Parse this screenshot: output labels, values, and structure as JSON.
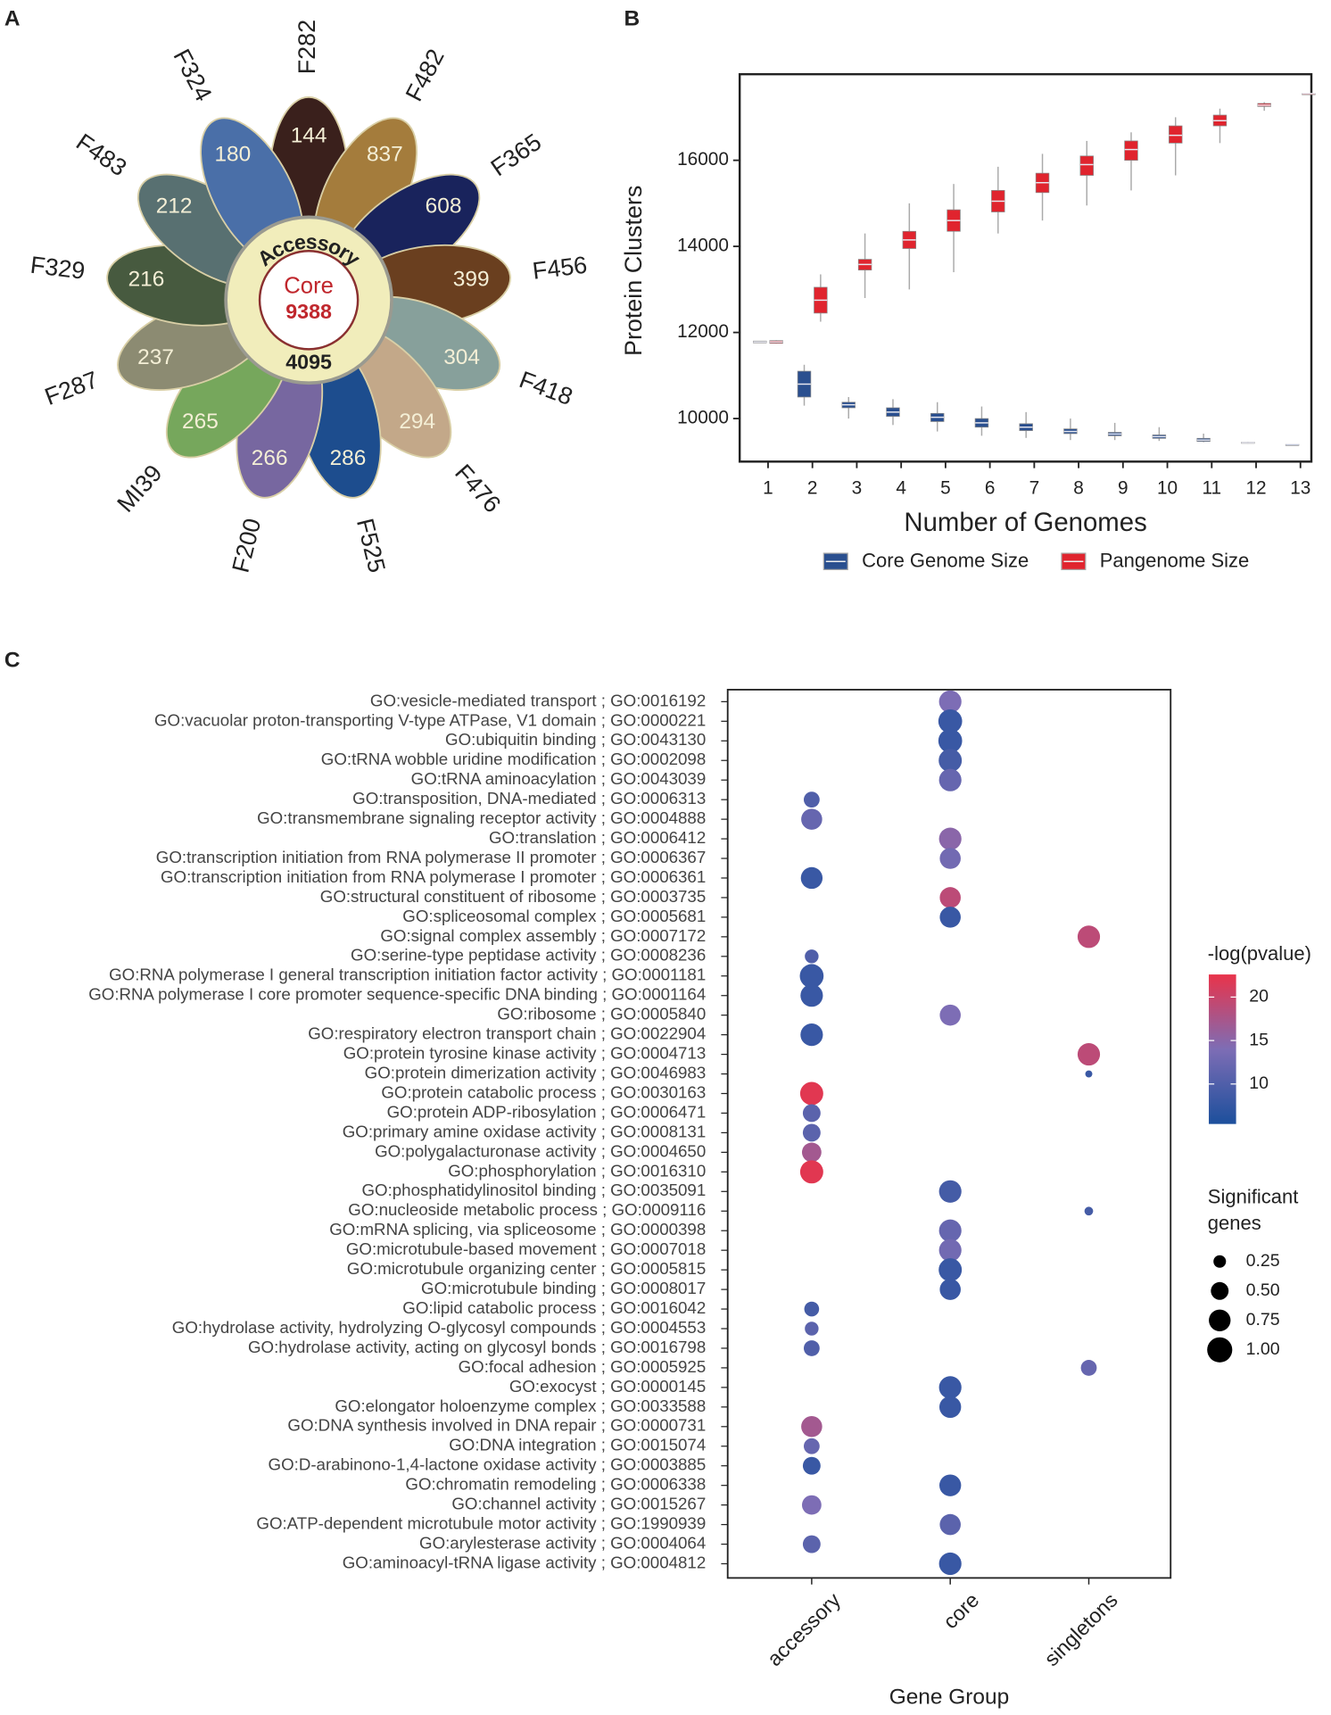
{
  "chart_data": [
    {
      "type": "flower",
      "panel": "A",
      "categories": [
        "F282",
        "F482",
        "F365",
        "F456",
        "F418",
        "F476",
        "F525",
        "F200",
        "MI39",
        "F287",
        "F329",
        "F483",
        "F324"
      ],
      "values": [
        144,
        837,
        608,
        399,
        304,
        294,
        286,
        266,
        265,
        237,
        216,
        212,
        180
      ],
      "colors": [
        "#3a201c",
        "#a47c3c",
        "#19235c",
        "#6a3f1f",
        "#87a09b",
        "#c3a889",
        "#1d4d8e",
        "#7767a0",
        "#76a75c",
        "#8c8b72",
        "#475a3f",
        "#587071",
        "#4a6fa8"
      ],
      "center_label": "Core",
      "center_value": 9388,
      "ring_label": "Accessory",
      "ring_value": 4095
    },
    {
      "type": "box",
      "panel": "B",
      "categories": [
        "1",
        "2",
        "3",
        "4",
        "5",
        "6",
        "7",
        "8",
        "9",
        "10",
        "11",
        "12",
        "13"
      ],
      "xlabel": "Number of Genomes",
      "ylabel": "Protein Clusters",
      "ylim": [
        9000,
        18000
      ],
      "yticks": [
        10000,
        12000,
        14000,
        16000
      ],
      "series": [
        {
          "name": "Core Genome Size",
          "color": "#2a4f8f",
          "whislo": [
            11780,
            10300,
            10000,
            9850,
            9700,
            9600,
            9550,
            9500,
            9500,
            9480,
            9450,
            9420,
            9400
          ],
          "q1": [
            11760,
            10500,
            10250,
            10050,
            9930,
            9800,
            9720,
            9650,
            9600,
            9540,
            9470,
            9430,
            9400
          ],
          "median": [
            11780,
            10800,
            10320,
            10150,
            10030,
            9900,
            9800,
            9700,
            9640,
            9580,
            9500,
            9440,
            9400
          ],
          "q3": [
            11800,
            11100,
            10380,
            10250,
            10120,
            10000,
            9880,
            9760,
            9680,
            9620,
            9540,
            9450,
            9400
          ],
          "whishi": [
            11800,
            11250,
            10500,
            10450,
            10380,
            10280,
            10150,
            10000,
            9900,
            9800,
            9650,
            9460,
            9400
          ]
        },
        {
          "name": "Pangenome Size",
          "color": "#e0242e",
          "whislo": [
            11740,
            12250,
            12800,
            13000,
            13400,
            14300,
            14600,
            14950,
            15300,
            15650,
            16400,
            17150,
            17550
          ],
          "q1": [
            11750,
            12450,
            13450,
            13950,
            14350,
            14800,
            15250,
            15650,
            16000,
            16400,
            16800,
            17250,
            17550
          ],
          "median": [
            11780,
            12750,
            13580,
            14150,
            14600,
            15050,
            15480,
            15900,
            16250,
            16580,
            16920,
            17280,
            17550
          ],
          "q3": [
            11810,
            13050,
            13700,
            14350,
            14850,
            15300,
            15700,
            16100,
            16450,
            16800,
            17050,
            17320,
            17550
          ],
          "whishi": [
            11820,
            13350,
            14300,
            15000,
            15450,
            15850,
            16150,
            16450,
            16650,
            17000,
            17200,
            17350,
            17550
          ]
        }
      ]
    },
    {
      "type": "dot",
      "panel": "C",
      "xlabel": "Gene Group",
      "xcategories": [
        "accessory",
        "core",
        "singletons"
      ],
      "categories": [
        "GO:vesicle-mediated transport ; GO:0016192",
        "GO:vacuolar proton-transporting V-type ATPase, V1 domain ; GO:0000221",
        "GO:ubiquitin binding ; GO:0043130",
        "GO:tRNA wobble uridine modification ; GO:0002098",
        "GO:tRNA aminoacylation ; GO:0043039",
        "GO:transposition, DNA-mediated ; GO:0006313",
        "GO:transmembrane signaling receptor activity ; GO:0004888",
        "GO:translation ; GO:0006412",
        "GO:transcription initiation from RNA polymerase II promoter ; GO:0006367",
        "GO:transcription initiation from RNA polymerase I promoter ; GO:0006361",
        "GO:structural constituent of ribosome ; GO:0003735",
        "GO:spliceosomal complex ; GO:0005681",
        "GO:signal complex assembly ; GO:0007172",
        "GO:serine-type peptidase activity ; GO:0008236",
        "GO:RNA polymerase I general transcription initiation factor activity ; GO:0001181",
        "GO:RNA polymerase I core promoter sequence-specific DNA binding ; GO:0001164",
        "GO:ribosome ; GO:0005840",
        "GO:respiratory electron transport chain ; GO:0022904",
        "GO:protein tyrosine kinase activity ; GO:0004713",
        "GO:protein dimerization activity ; GO:0046983",
        "GO:protein catabolic process ; GO:0030163",
        "GO:protein ADP-ribosylation ; GO:0006471",
        "GO:primary amine oxidase activity ; GO:0008131",
        "GO:polygalacturonase activity ; GO:0004650",
        "GO:phosphorylation ; GO:0016310",
        "GO:phosphatidylinositol binding ; GO:0035091",
        "GO:nucleoside metabolic process ; GO:0009116",
        "GO:mRNA splicing, via spliceosome ; GO:0000398",
        "GO:microtubule-based movement ; GO:0007018",
        "GO:microtubule organizing center ; GO:0005815",
        "GO:microtubule binding ; GO:0008017",
        "GO:lipid catabolic process ; GO:0016042",
        "GO:hydrolase activity, hydrolyzing O-glycosyl compounds ; GO:0004553",
        "GO:hydrolase activity, acting on glycosyl bonds ; GO:0016798",
        "GO:focal adhesion ; GO:0005925",
        "GO:exocyst ; GO:0000145",
        "GO:elongator holoenzyme complex ; GO:0033588",
        "GO:DNA synthesis involved in DNA repair ; GO:0000731",
        "GO:DNA integration ; GO:0015074",
        "GO:D-arabinono-1,4-lactone oxidase activity ; GO:0003885",
        "GO:chromatin remodeling ; GO:0006338",
        "GO:channel activity ; GO:0015267",
        "GO:ATP-dependent microtubule motor activity ; GO:1990939",
        "GO:arylesterase activity ; GO:0004064",
        "GO:aminoacyl-tRNA ligase activity ; GO:0004812"
      ],
      "x": [
        "core",
        "core",
        "core",
        "core",
        "core",
        "accessory",
        "accessory",
        "core",
        "core",
        "accessory",
        "core",
        "core",
        "singletons",
        "accessory",
        "accessory",
        "accessory",
        "core",
        "accessory",
        "singletons",
        "singletons",
        "accessory",
        "accessory",
        "accessory",
        "accessory",
        "accessory",
        "core",
        "singletons",
        "core",
        "core",
        "core",
        "core",
        "accessory",
        "accessory",
        "accessory",
        "singletons",
        "core",
        "core",
        "accessory",
        "accessory",
        "accessory",
        "core",
        "accessory",
        "core",
        "accessory",
        "core"
      ],
      "color_values": [
        14,
        8,
        8,
        9,
        12,
        10,
        12,
        15,
        13,
        8,
        19,
        8,
        19,
        10,
        8,
        8,
        14,
        8,
        19,
        8,
        22,
        11,
        11,
        17,
        22,
        9,
        9,
        12,
        13,
        8,
        8,
        9,
        11,
        10,
        12,
        8,
        8,
        17,
        12,
        8,
        8,
        14,
        11,
        11,
        8
      ],
      "sizes": [
        0.8,
        0.9,
        0.9,
        0.85,
        0.8,
        0.4,
        0.7,
        0.8,
        0.7,
        0.75,
        0.7,
        0.7,
        0.8,
        0.3,
        0.9,
        0.8,
        0.7,
        0.8,
        0.8,
        0.08,
        0.85,
        0.5,
        0.5,
        0.6,
        0.85,
        0.8,
        0.12,
        0.8,
        0.8,
        0.85,
        0.7,
        0.35,
        0.3,
        0.4,
        0.4,
        0.8,
        0.75,
        0.7,
        0.4,
        0.5,
        0.75,
        0.6,
        0.7,
        0.5,
        0.8
      ],
      "colorbar_title": "-log(pvalue)",
      "clim": [
        5.4,
        22.6
      ],
      "cticks": [
        10,
        15,
        20
      ],
      "colorscale": [
        "#1c4f9c",
        "#7d6db5",
        "#e9334a"
      ],
      "size_title": [
        "Significant",
        "genes"
      ],
      "size_legend": [
        {
          "value": 0.25,
          "label": "0.25"
        },
        {
          "value": 0.5,
          "label": "0.50"
        },
        {
          "value": 0.75,
          "label": "0.75"
        },
        {
          "value": 1,
          "label": "1.00"
        }
      ]
    }
  ]
}
